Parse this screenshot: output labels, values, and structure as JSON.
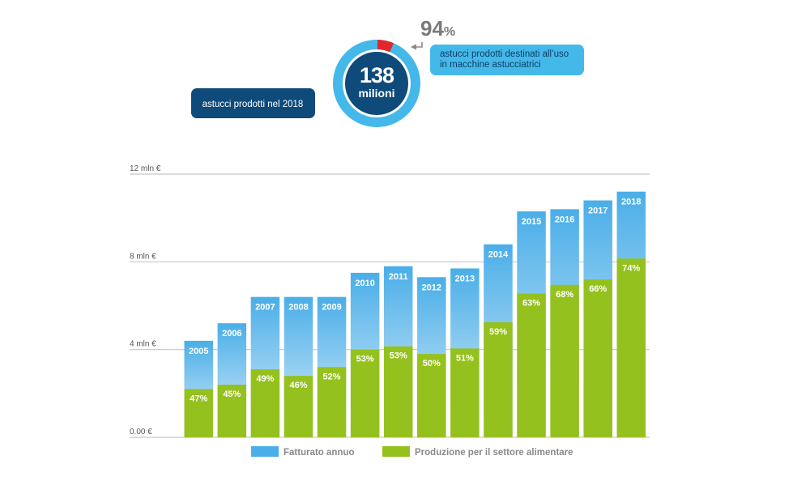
{
  "donut": {
    "total_value": "138",
    "total_unit": "milioni",
    "share_percent_value": "94",
    "share_percent_sign": "%",
    "share_fraction": 0.94,
    "callout_total": "astucci prodotti nel 2018",
    "callout_share_line1": "astucci prodotti destinati all’uso",
    "callout_share_line2": "in macchine astucciatrici",
    "colors": {
      "ring": "#45b8ea",
      "center": "#0e4a7a",
      "gap": "#e2262b",
      "callout_light": "#45b8ea",
      "callout_dark": "#0e4a7a"
    }
  },
  "chart_data": {
    "type": "bar",
    "categories": [
      "2005",
      "2006",
      "2007",
      "2008",
      "2009",
      "2010",
      "2011",
      "2012",
      "2013",
      "2014",
      "2015",
      "2016",
      "2017",
      "2018"
    ],
    "series": [
      {
        "name": "Fatturato annuo",
        "values": [
          4.4,
          5.2,
          6.4,
          6.4,
          6.4,
          7.5,
          7.8,
          7.3,
          7.7,
          8.8,
          10.3,
          10.4,
          10.8,
          11.2
        ]
      },
      {
        "name": "Produzione per il settore alimentare",
        "values": [
          2.2,
          2.4,
          3.1,
          2.8,
          3.2,
          4.0,
          4.15,
          3.8,
          4.05,
          5.25,
          6.55,
          6.95,
          7.2,
          8.15
        ],
        "labels": [
          "47%",
          "45%",
          "49%",
          "46%",
          "52%",
          "53%",
          "53%",
          "50%",
          "51%",
          "59%",
          "63%",
          "68%",
          "66%",
          "74%"
        ]
      }
    ],
    "ylim": [
      0,
      12
    ],
    "yticks": [
      0,
      4,
      8,
      12
    ],
    "ytick_labels": [
      "0.00 €",
      "4 mln €",
      "8 mln €",
      "12 mln €"
    ],
    "grid": true,
    "legend_position": "bottom",
    "colors": {
      "revenue_top": "#4aaee8",
      "revenue_bottom": "#dbeefa",
      "food": "#95c11f",
      "grid": "#c8c8c8"
    }
  }
}
